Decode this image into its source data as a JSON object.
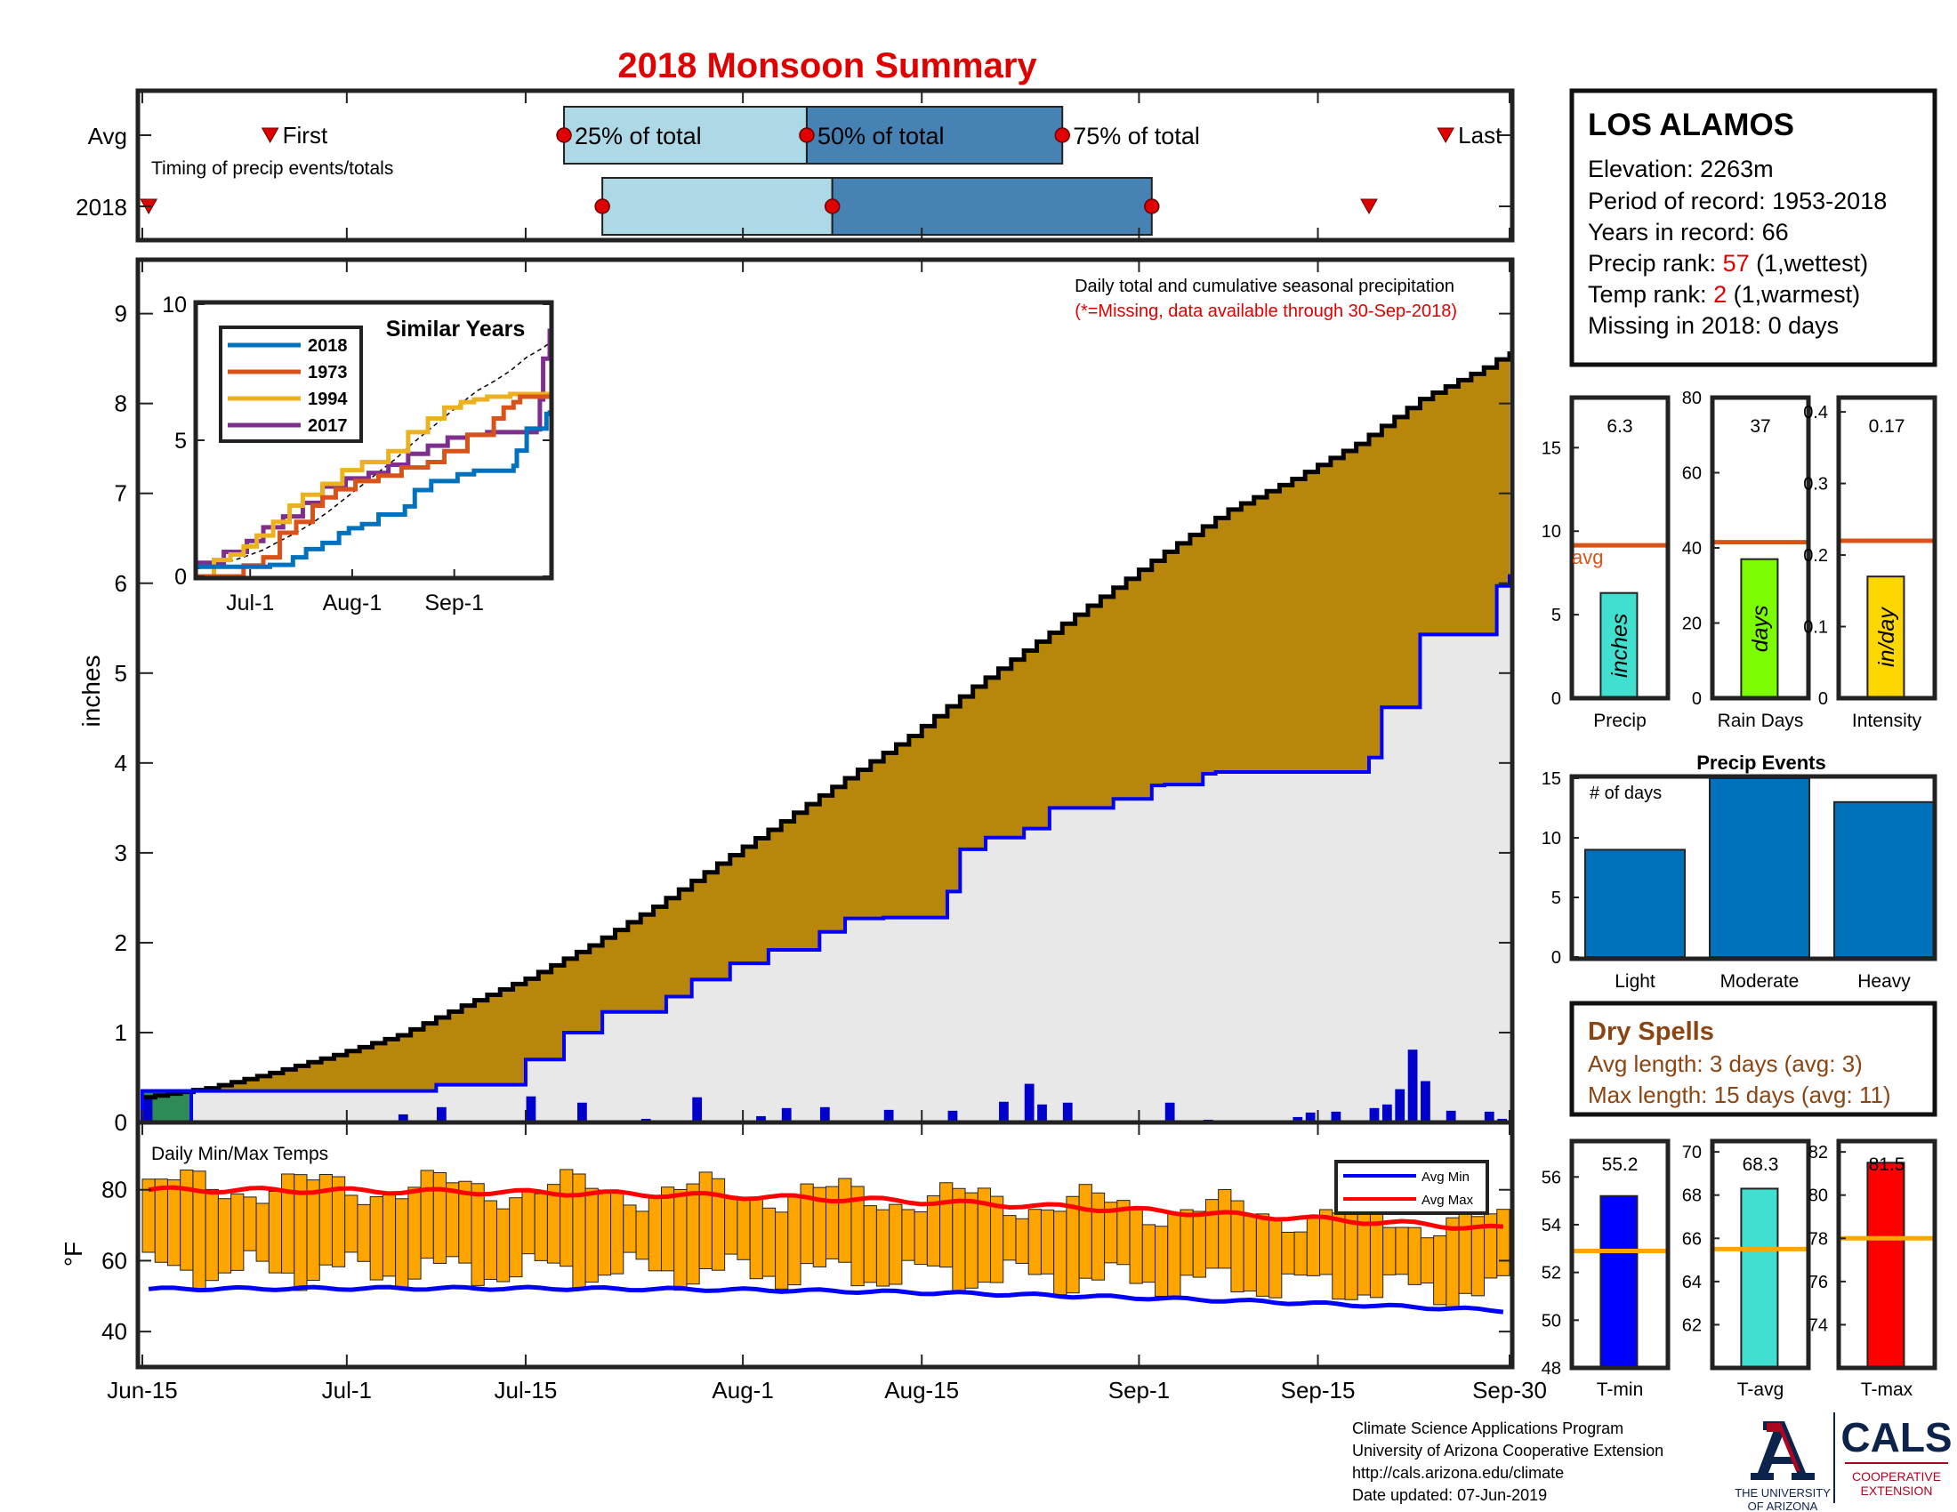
{
  "title": "2018 Monsoon Summary",
  "timing": {
    "avg_label": "Avg",
    "year_label": "2018",
    "first_label": "First",
    "last_label": "Last",
    "q25_label": "25% of total",
    "q50_label": "50% of total",
    "q75_label": "75% of total",
    "caption": "Timing of precip events/totals",
    "avg": {
      "first": 5,
      "q25": 33,
      "q50": 52,
      "q75": 72,
      "last": 102
    },
    "y2018": {
      "first": 0.5,
      "q25": 36,
      "q50": 54,
      "q75": 79,
      "last": 96
    }
  },
  "station": {
    "name": "LOS ALAMOS",
    "elevation": "Elevation: 2263m",
    "period": "Period of record: 1953-2018",
    "years": "Years in record: 66",
    "precip_rank_prefix": "Precip rank: ",
    "precip_rank_value": "57",
    "precip_rank_suffix": " (1,wettest)",
    "temp_rank_prefix": "Temp rank: ",
    "temp_rank_value": "2",
    "temp_rank_suffix": " (1,warmest)",
    "missing": "Missing in 2018: 0 days"
  },
  "main_chart": {
    "ylabel": "inches",
    "ylim": [
      0,
      9.6
    ],
    "yticks": [
      "0",
      "1",
      "2",
      "3",
      "4",
      "5",
      "6",
      "7",
      "8",
      "9"
    ],
    "xlabels": [
      "Jun-15",
      "Jul-1",
      "Jul-15",
      "Aug-1",
      "Aug-15",
      "Sep-1",
      "Sep-15",
      "Sep-30"
    ],
    "note1": "Daily total and cumulative seasonal precipitation",
    "note2": "(*=Missing, data available through 30-Sep-2018)"
  },
  "chart_data": [
    {
      "type": "area",
      "description_series": [
        "Average cumulative",
        "2018 cumulative",
        "2018 daily precip"
      ],
      "x_unit": "days since Jun-15",
      "avg_cumulative": {
        "x": [
          0,
          5,
          10,
          15,
          20,
          25,
          30,
          35,
          40,
          45,
          50,
          55,
          60,
          65,
          70,
          75,
          80,
          85,
          90,
          95,
          100,
          105,
          107
        ],
        "y": [
          0.28,
          0.38,
          0.55,
          0.75,
          0.97,
          1.3,
          1.6,
          1.97,
          2.4,
          2.88,
          3.35,
          3.83,
          4.3,
          4.85,
          5.35,
          5.85,
          6.35,
          6.82,
          7.16,
          7.55,
          8.05,
          8.4,
          8.58
        ]
      },
      "y2018_cumulative": {
        "x": [
          0,
          16,
          17,
          22,
          23,
          29,
          30,
          32,
          33,
          35,
          36,
          38,
          41,
          42,
          43,
          46,
          49,
          50,
          53,
          54,
          55,
          56,
          58,
          61,
          63,
          64,
          66,
          69,
          71,
          76,
          77,
          78,
          79,
          80,
          81,
          82,
          83,
          84,
          88,
          96,
          97,
          100,
          106,
          107
        ],
        "y": [
          0.35,
          0.35,
          0.35,
          0.35,
          0.42,
          0.42,
          0.7,
          0.7,
          1.0,
          1.0,
          1.23,
          1.23,
          1.4,
          1.4,
          1.59,
          1.77,
          1.92,
          1.92,
          2.12,
          2.12,
          2.27,
          2.27,
          2.28,
          2.28,
          2.57,
          3.04,
          3.17,
          3.27,
          3.5,
          3.6,
          3.6,
          3.6,
          3.75,
          3.76,
          3.76,
          3.76,
          3.88,
          3.9,
          3.9,
          4.06,
          4.62,
          5.43,
          5.97,
          6.1
        ]
      },
      "daily_precip": {
        "x": [
          0,
          20,
          23,
          30,
          34,
          39,
          43,
          48,
          50,
          53,
          58,
          63,
          67,
          69,
          70,
          72,
          80,
          83,
          84,
          90,
          91,
          93,
          96,
          97,
          98,
          99,
          100,
          102,
          105,
          106
        ],
        "y": [
          0.28,
          0.09,
          0.17,
          0.29,
          0.22,
          0.04,
          0.28,
          0.07,
          0.16,
          0.17,
          0.14,
          0.13,
          0.23,
          0.43,
          0.2,
          0.22,
          0.22,
          0.03,
          0.02,
          0.06,
          0.11,
          0.12,
          0.16,
          0.2,
          0.37,
          0.81,
          0.46,
          0.13,
          0.12,
          0.04
        ]
      }
    },
    {
      "type": "line",
      "title": "Similar Years",
      "ylim": [
        0,
        10
      ],
      "yticks": [
        "0",
        "5",
        "10"
      ],
      "xlabels": [
        "Jul-1",
        "Aug-1",
        "Sep-1"
      ],
      "series": [
        {
          "name": "2018",
          "color": "#0072bd",
          "x": [
            0,
            16,
            22,
            29,
            33,
            38,
            43,
            46,
            50,
            55,
            63,
            66,
            71,
            79,
            84,
            96,
            97,
            100,
            106,
            107
          ],
          "y": [
            0.35,
            0.35,
            0.42,
            0.7,
            1.0,
            1.23,
            1.59,
            1.77,
            1.92,
            2.27,
            2.57,
            3.17,
            3.5,
            3.75,
            3.88,
            4.06,
            4.62,
            5.43,
            5.97,
            6.1
          ]
        },
        {
          "name": "1973",
          "color": "#d95319",
          "x": [
            0,
            10,
            14,
            20,
            25,
            30,
            35,
            38,
            42,
            48,
            55,
            62,
            70,
            75,
            82,
            90,
            93,
            96,
            98,
            107
          ],
          "y": [
            0,
            0,
            0.4,
            0.7,
            1.6,
            2.0,
            2.6,
            2.9,
            3.2,
            3.5,
            3.7,
            4.0,
            4.2,
            4.6,
            5.2,
            5.8,
            6.2,
            6.4,
            6.6,
            6.6
          ]
        },
        {
          "name": "1994",
          "color": "#edb120",
          "x": [
            0,
            5,
            10,
            14,
            18,
            23,
            28,
            32,
            38,
            44,
            50,
            58,
            64,
            70,
            75,
            80,
            84,
            88,
            92,
            95,
            98,
            107
          ],
          "y": [
            0,
            0.6,
            0.8,
            1.1,
            1.5,
            2.0,
            2.6,
            3.0,
            3.4,
            3.9,
            4.2,
            4.6,
            5.3,
            5.8,
            6.2,
            6.4,
            6.5,
            6.6,
            6.6,
            6.7,
            6.7,
            6.7
          ]
        },
        {
          "name": "2017",
          "color": "#7e2f8e",
          "x": [
            0,
            8,
            15,
            20,
            26,
            32,
            38,
            45,
            52,
            58,
            64,
            70,
            76,
            82,
            88,
            94,
            100,
            103,
            104,
            105,
            107
          ],
          "y": [
            0.5,
            0.9,
            1.3,
            1.8,
            2.2,
            2.7,
            3.3,
            3.6,
            3.8,
            4.1,
            4.5,
            4.8,
            5.1,
            5.2,
            5.3,
            5.3,
            5.3,
            5.4,
            6.5,
            8.0,
            9.1
          ]
        }
      ],
      "avg_dashed": {
        "x": [
          0,
          5,
          10,
          15,
          20,
          25,
          30,
          35,
          40,
          45,
          50,
          55,
          60,
          65,
          70,
          75,
          80,
          85,
          90,
          95,
          100,
          105,
          107
        ],
        "y": [
          0.28,
          0.38,
          0.55,
          0.75,
          0.97,
          1.3,
          1.6,
          1.97,
          2.4,
          2.88,
          3.35,
          3.83,
          4.3,
          4.85,
          5.35,
          5.85,
          6.35,
          6.82,
          7.16,
          7.55,
          8.05,
          8.4,
          8.58
        ]
      }
    },
    {
      "type": "bar",
      "title": "Daily Min/Max Temps",
      "ylabel": "°F",
      "ylim": [
        30,
        99
      ],
      "yticks": [
        "40",
        "60",
        "80"
      ],
      "legend": [
        "Avg Min",
        "Avg Max"
      ],
      "tmin_start": 52,
      "tmin_end": 45,
      "tmax_start": 80,
      "tmax_end": 69,
      "tmax_peak": 84,
      "bars_note": "daily min-max ranges, 108 days"
    },
    {
      "type": "bar",
      "title": "Precip",
      "value": 6.3,
      "avg": 9.15,
      "ylim": [
        0,
        18
      ],
      "yticks": [
        "0",
        "5",
        "10",
        "15"
      ],
      "unit": "inches",
      "color": "#40e0d0",
      "avg_label": "avg",
      "xlabel": "Precip"
    },
    {
      "type": "bar",
      "title": "Rain Days",
      "value": 37,
      "avg": 41.5,
      "ylim": [
        0,
        80
      ],
      "yticks": [
        "0",
        "20",
        "40",
        "60",
        "80"
      ],
      "unit": "days",
      "color": "#7cfc00",
      "xlabel": "Rain Days"
    },
    {
      "type": "bar",
      "title": "Intensity",
      "value": 0.17,
      "avg": 0.22,
      "ylim": [
        0,
        0.42
      ],
      "yticks": [
        "0",
        "0.1",
        "0.2",
        "0.3",
        "0.4"
      ],
      "unit": "in/day",
      "color": "#ffd700",
      "xlabel": "Intensity"
    },
    {
      "type": "bar",
      "title": "Precip Events",
      "ylabel": "# of days",
      "categories": [
        "Light",
        "Moderate",
        "Heavy"
      ],
      "values": [
        9,
        15,
        13
      ],
      "ylim": [
        0,
        15
      ],
      "yticks": [
        "0",
        "5",
        "10",
        "15"
      ]
    },
    {
      "type": "bar",
      "title": "T-min",
      "value": 55.2,
      "avg": 52.9,
      "ylim": [
        48,
        57.5
      ],
      "yticks": [
        "48",
        "50",
        "52",
        "54",
        "56"
      ],
      "color": "#0000ff",
      "xlabel": "T-min"
    },
    {
      "type": "bar",
      "title": "T-avg",
      "value": 68.3,
      "avg": 65.5,
      "ylim": [
        60,
        70.5
      ],
      "yticks": [
        "62",
        "64",
        "66",
        "68",
        "70"
      ],
      "color": "#40e0d0",
      "xlabel": "T-avg"
    },
    {
      "type": "bar",
      "title": "T-max",
      "value": 81.5,
      "avg": 78,
      "ylim": [
        72,
        82.5
      ],
      "yticks": [
        "74",
        "76",
        "78",
        "80",
        "82"
      ],
      "color": "#ff0000",
      "xlabel": "T-max"
    }
  ],
  "dry_spells": {
    "title": "Dry Spells",
    "avg": "Avg length: 3 days (avg: 3)",
    "max": "Max length: 15 days (avg: 11)"
  },
  "credits": {
    "line1": "Climate Science Applications Program",
    "line2": "University of Arizona Cooperative Extension",
    "line3": "http://cals.arizona.edu/climate",
    "line4": " Date updated: 07-Jun-2019",
    "ua_name1": "THE UNIVERSITY",
    "ua_name2": "OF ARIZONA",
    "cals": "CALS",
    "cals_sub1": "COOPERATIVE",
    "cals_sub2": "EXTENSION"
  },
  "colors": {
    "avg_fill": "#b8860b",
    "year_fill": "#e8e8e8",
    "year_line": "#0000ff",
    "avg_line": "#000000",
    "daily_bar": "#0000cd",
    "temp_bar": "#ffa500",
    "title_red": "#e00000",
    "brown_text": "#8b4513",
    "box_light": "#add8e6",
    "box_dark": "#4682b4",
    "orange_avg": "#d95319",
    "event_bar": "#0072bd",
    "ua_navy": "#0c234b",
    "ua_red": "#ab0520"
  }
}
